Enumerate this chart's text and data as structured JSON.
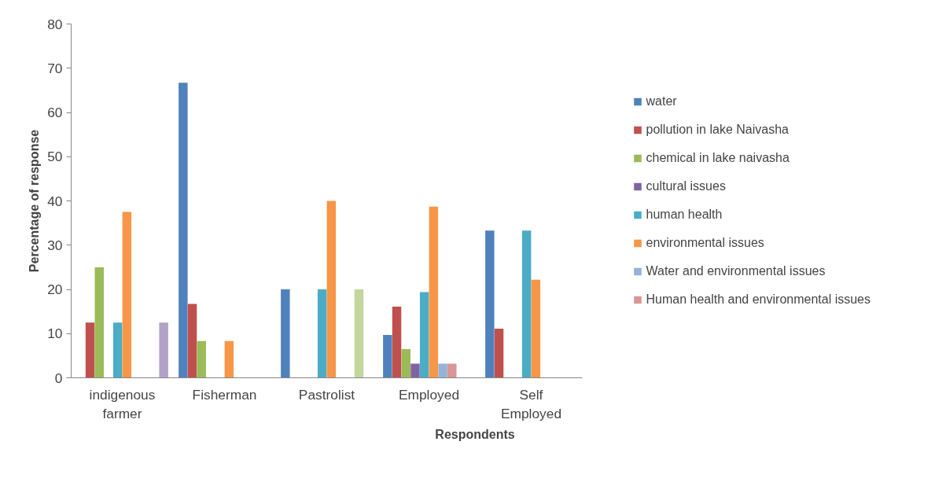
{
  "chart_data": {
    "type": "bar",
    "xlabel": "Respondents",
    "ylabel": "Percentage of response",
    "categories": [
      "indigenous farmer",
      "Fisherman",
      "Pastrolist",
      "Employed",
      "Self Employed"
    ],
    "ylim": [
      0,
      80
    ],
    "yticks": [
      0,
      10,
      20,
      30,
      40,
      50,
      60,
      70,
      80
    ],
    "grid": false,
    "legend": "right",
    "series": [
      {
        "name": "water",
        "color": "#4f81bd",
        "values": [
          null,
          66.7,
          20,
          9.7,
          33.3
        ]
      },
      {
        "name": "pollution in lake Naivasha",
        "color": "#c0504d",
        "values": [
          12.5,
          16.7,
          null,
          16.1,
          11.1
        ]
      },
      {
        "name": "chemical in lake naivasha",
        "color": "#9bbb59",
        "values": [
          25,
          8.3,
          null,
          6.5,
          null
        ]
      },
      {
        "name": "cultural issues",
        "color": "#8064a2",
        "values": [
          null,
          null,
          null,
          3.2,
          null
        ]
      },
      {
        "name": "human health",
        "color": "#4bacc6",
        "values": [
          12.5,
          null,
          20,
          19.4,
          33.3
        ]
      },
      {
        "name": "environmental issues",
        "color": "#f79646",
        "values": [
          37.5,
          8.3,
          40,
          38.7,
          22.2
        ]
      },
      {
        "name": "Water and environmental issues",
        "color": "#95b3d7",
        "values": [
          null,
          null,
          null,
          3.2,
          null
        ]
      },
      {
        "name": "Human health and environmental issues",
        "color": "#d99694",
        "values": [
          null,
          null,
          null,
          3.2,
          null
        ]
      },
      {
        "color": "#c3d69b",
        "values": [
          null,
          null,
          20,
          null,
          null
        ]
      },
      {
        "color": "#b2a2c7",
        "values": [
          12.5,
          null,
          null,
          null,
          null
        ]
      }
    ]
  }
}
